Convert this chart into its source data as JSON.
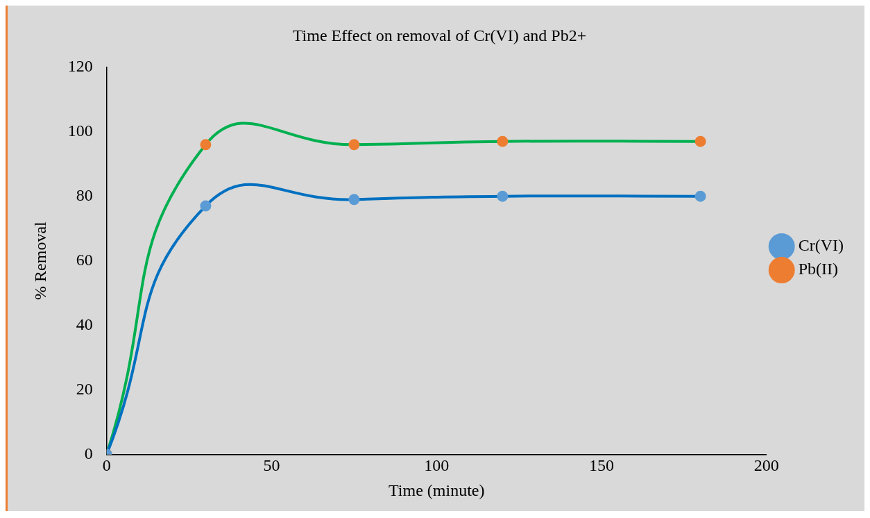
{
  "chart_data": {
    "type": "line",
    "title": "Time Effect on removal of Cr(VI) and Pb2+",
    "xlabel": "Time (minute)",
    "ylabel": "% Removal",
    "x": [
      0,
      30,
      75,
      120,
      180
    ],
    "series": [
      {
        "name": "Cr(VI)",
        "color": "#0070c0",
        "colors": [
          "#5b9bd5",
          "#5b9bd5",
          "#5b9bd5",
          "#5b9bd5",
          "#5b9bd5"
        ],
        "values": [
          0,
          77,
          79,
          80,
          80
        ]
      },
      {
        "name": "Pb(II)",
        "color": "#00b050",
        "colors": [
          "#ed7d31",
          "#ed7d31",
          "#ed7d31",
          "#ed7d31",
          "#ed7d31"
        ],
        "values": [
          0,
          96,
          96,
          97,
          97
        ]
      }
    ],
    "xlim": [
      0,
      200
    ],
    "xticks": [
      0,
      50,
      100,
      150,
      200
    ],
    "ylim": [
      0,
      120
    ],
    "yticks": [
      0,
      20,
      40,
      60,
      80,
      100,
      120
    ],
    "grid": false,
    "legend": "right",
    "marker": "circle",
    "line_style": "solid"
  }
}
